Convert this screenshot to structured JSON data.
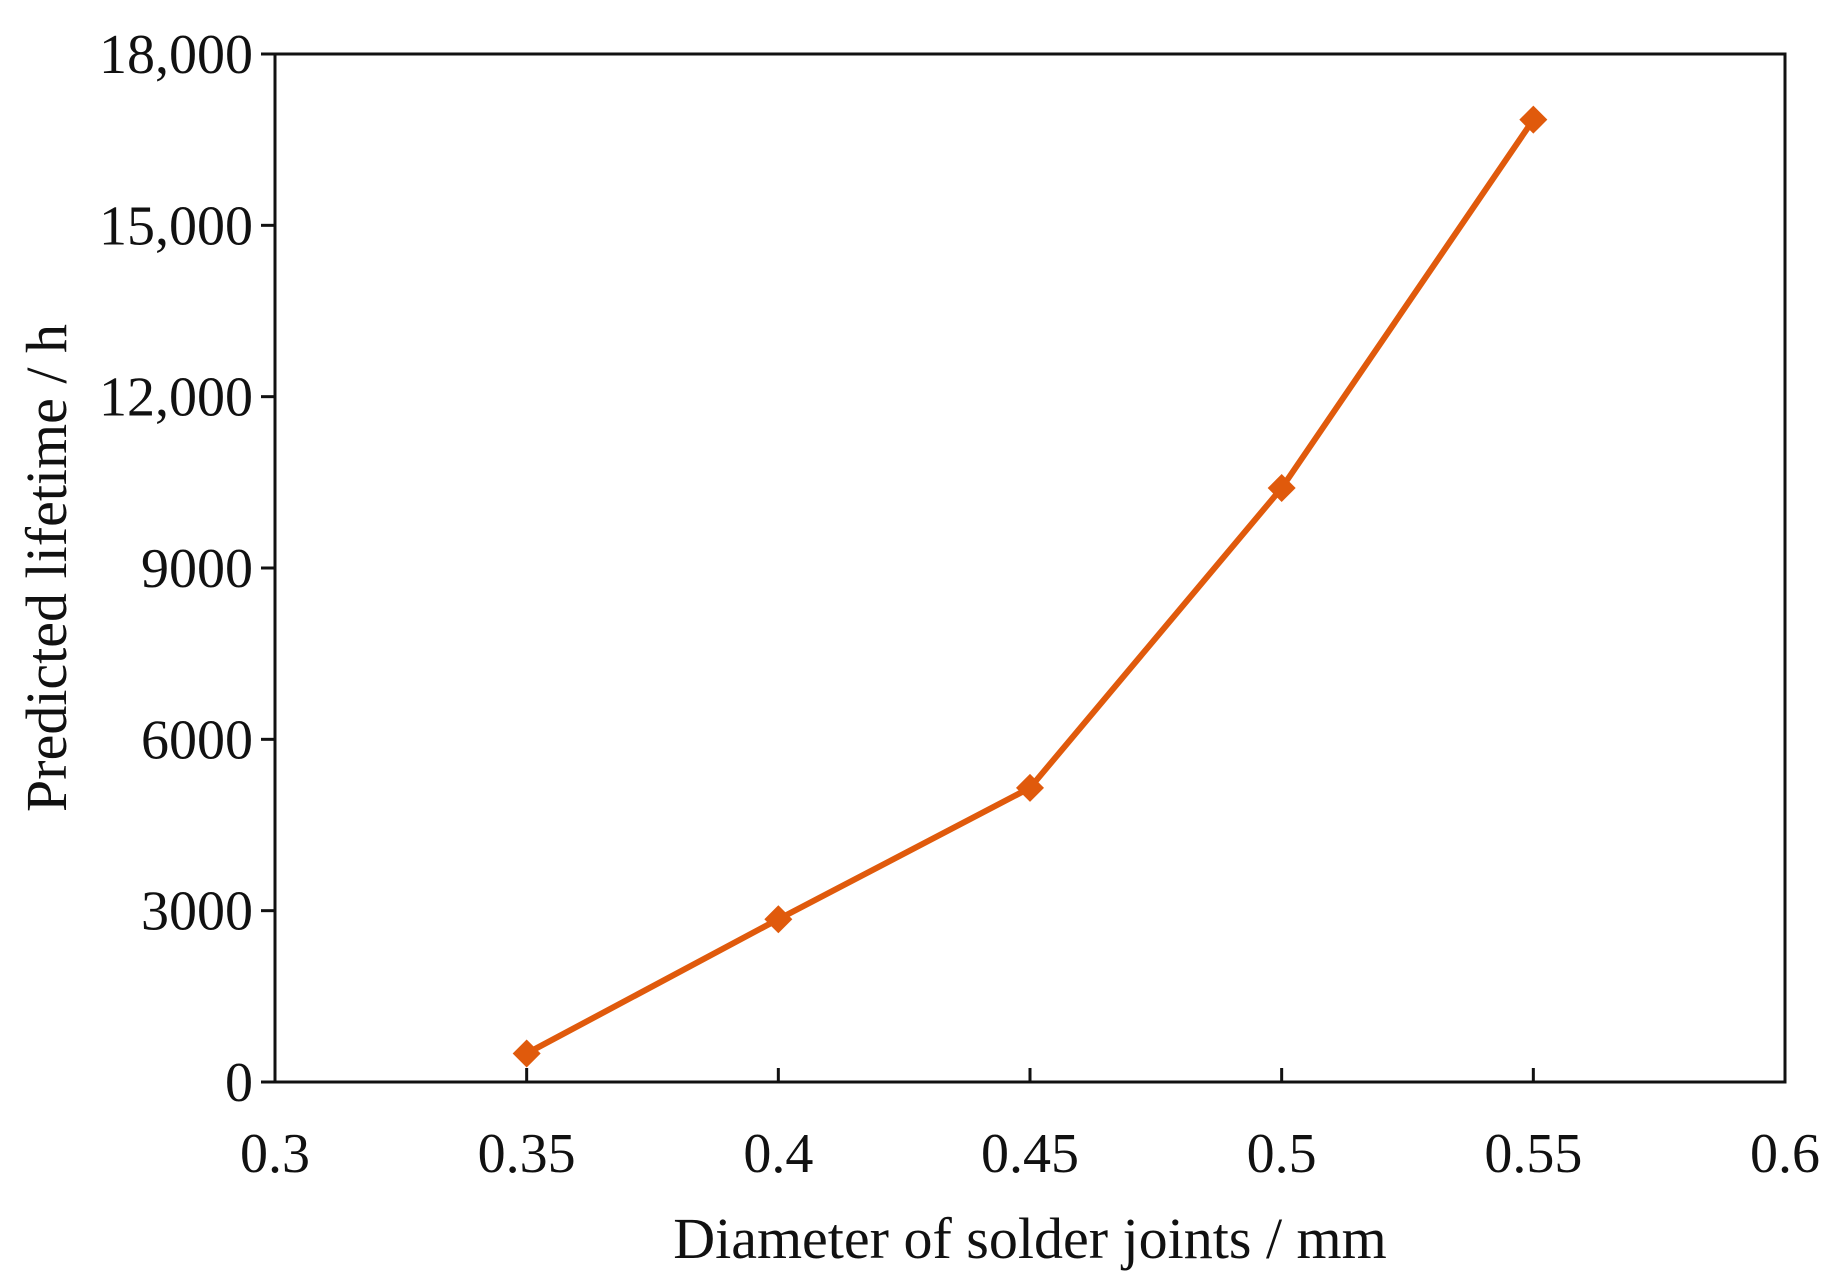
{
  "chart_data": {
    "type": "line",
    "title": "",
    "xlabel": "Diameter of solder joints / mm",
    "ylabel": "Predicted lifetime / h",
    "xlim": [
      0.3,
      0.6
    ],
    "ylim": [
      0,
      18000
    ],
    "x_ticks": [
      "0.3",
      "0.35",
      "0.4",
      "0.45",
      "0.5",
      "0.55",
      "0.6"
    ],
    "y_ticks": [
      "0",
      "3000",
      "6000",
      "9000",
      "12,000",
      "15,000",
      "18,000"
    ],
    "x_tick_values": [
      0.3,
      0.35,
      0.4,
      0.45,
      0.5,
      0.55,
      0.6
    ],
    "y_tick_values": [
      0,
      3000,
      6000,
      9000,
      12000,
      15000,
      18000
    ],
    "grid": false,
    "legend": "none",
    "series": [
      {
        "x": [
          0.35,
          0.4,
          0.45,
          0.5,
          0.55
        ],
        "values": [
          500,
          2850,
          5150,
          10400,
          16850
        ],
        "color": "#E05A0C",
        "marker": "diamond"
      }
    ]
  }
}
